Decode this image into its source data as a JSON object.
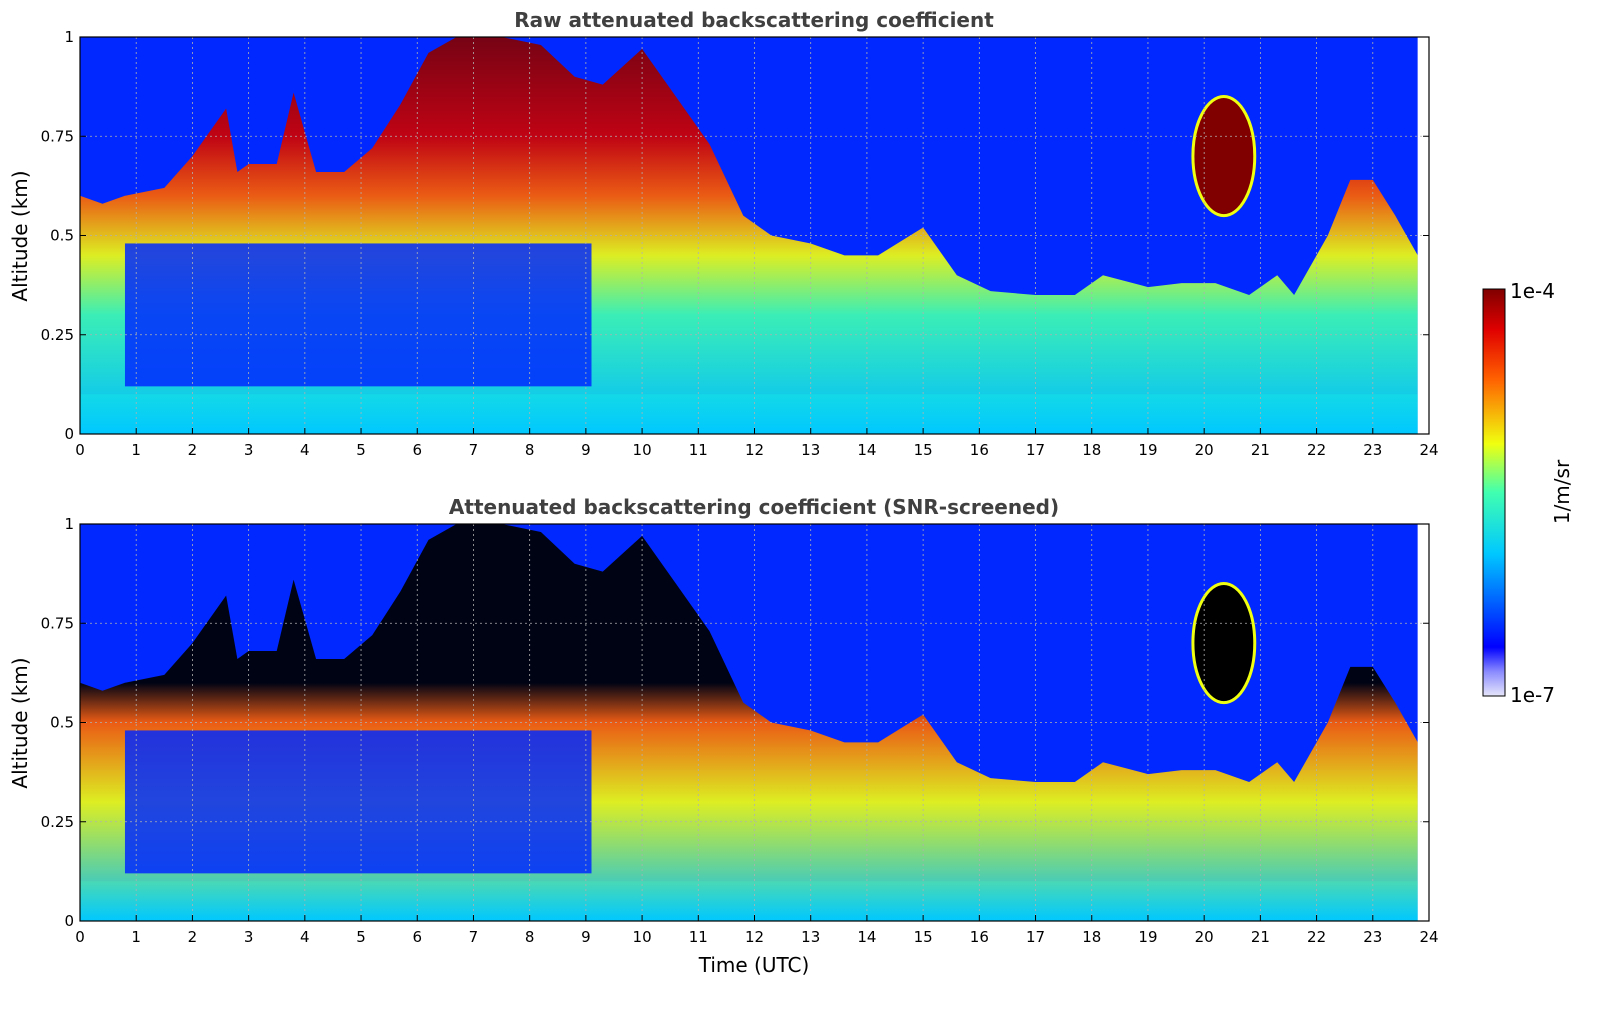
{
  "chart_data": [
    {
      "type": "heatmap",
      "title": "Raw attenuated backscattering coefficient",
      "xlabel": "",
      "ylabel": "Altitude (km)",
      "xlim": [
        0,
        24
      ],
      "ylim": [
        0,
        1
      ],
      "xticks": [
        "0",
        "1",
        "2",
        "3",
        "4",
        "5",
        "6",
        "7",
        "8",
        "9",
        "10",
        "11",
        "12",
        "13",
        "14",
        "15",
        "16",
        "17",
        "18",
        "19",
        "20",
        "21",
        "22",
        "23",
        "24"
      ],
      "yticks": [
        "0",
        "0.25",
        "0.5",
        "0.75",
        "1"
      ],
      "grid": true,
      "color_scale": "log",
      "colormap": "jet",
      "data_end_hour": 23.8,
      "layer_top_profile": {
        "hour": [
          0,
          0.4,
          0.8,
          1.5,
          2.0,
          2.6,
          2.8,
          3.0,
          3.5,
          3.8,
          4.2,
          4.7,
          5.2,
          5.7,
          6.2,
          6.7,
          7.5,
          8.2,
          8.8,
          9.3,
          10.0,
          10.6,
          11.2,
          11.8,
          12.3,
          13.0,
          13.6,
          14.2,
          15.0,
          15.6,
          16.2,
          17.0,
          17.7,
          18.2,
          19.0,
          19.6,
          20.2,
          20.8,
          21.3,
          21.6,
          22.2,
          22.6,
          23.0,
          23.4,
          23.8
        ],
        "altitude_km": [
          0.6,
          0.58,
          0.6,
          0.62,
          0.7,
          0.82,
          0.66,
          0.68,
          0.68,
          0.86,
          0.66,
          0.66,
          0.72,
          0.83,
          0.96,
          1.0,
          1.0,
          0.98,
          0.9,
          0.88,
          0.97,
          0.85,
          0.73,
          0.55,
          0.5,
          0.48,
          0.45,
          0.45,
          0.52,
          0.4,
          0.36,
          0.35,
          0.35,
          0.4,
          0.37,
          0.38,
          0.38,
          0.35,
          0.4,
          0.35,
          0.5,
          0.64,
          0.64,
          0.55,
          0.45
        ]
      },
      "elevated_cloud": {
        "hour_range": [
          19.8,
          20.9
        ],
        "altitude_km": [
          0.55,
          0.85
        ]
      }
    },
    {
      "type": "heatmap",
      "title": "Attenuated backscattering coefficient (SNR-screened)",
      "xlabel": "Time (UTC)",
      "ylabel": "Altitude (km)",
      "xlim": [
        0,
        24
      ],
      "ylim": [
        0,
        1
      ],
      "xticks": [
        "0",
        "1",
        "2",
        "3",
        "4",
        "5",
        "6",
        "7",
        "8",
        "9",
        "10",
        "11",
        "12",
        "13",
        "14",
        "15",
        "16",
        "17",
        "18",
        "19",
        "20",
        "21",
        "22",
        "23",
        "24"
      ],
      "yticks": [
        "0",
        "0.25",
        "0.5",
        "0.75",
        "1"
      ],
      "grid": true,
      "color_scale": "log",
      "colormap": "jet",
      "saturated_color": "#000000",
      "data_end_hour": 23.8
    }
  ],
  "colorbar": {
    "label": "1/m/sr",
    "max_label": "1e-4",
    "min_label": "1e-7",
    "range": [
      1e-07,
      0.0001
    ]
  },
  "colors": {
    "dark_red": "#800000",
    "blue": "#0028ff",
    "cyan": "#00c8ff",
    "yellow": "#f0ff0f",
    "saturated": "#000000",
    "title_gray": "#404040"
  }
}
